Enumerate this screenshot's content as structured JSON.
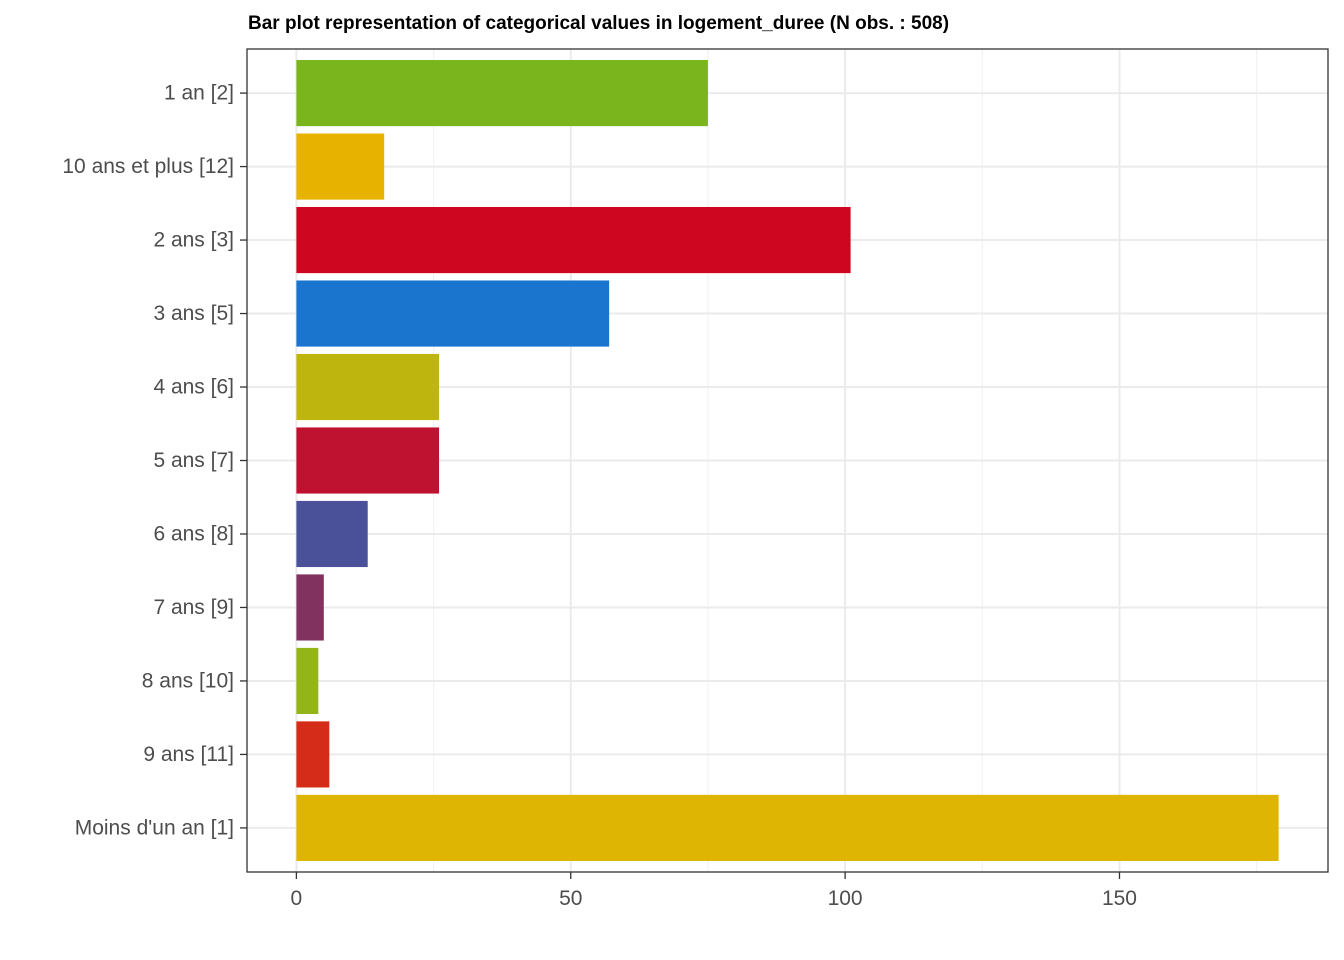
{
  "chart_data": {
    "type": "bar",
    "orientation": "horizontal",
    "title": "Bar plot representation of categorical values in logement_duree (N obs. : 508)",
    "xlabel": "",
    "ylabel": "",
    "categories": [
      "1 an [2]",
      "10 ans et plus [12]",
      "2 ans [3]",
      "3 ans [5]",
      "4 ans [6]",
      "5 ans [7]",
      "6 ans [8]",
      "7 ans [9]",
      "8 ans [10]",
      "9 ans [11]",
      "Moins d'un an [1]"
    ],
    "values": [
      75,
      16,
      101,
      57,
      26,
      26,
      13,
      5,
      4,
      6,
      179
    ],
    "colors": [
      "#7AB51D",
      "#E8B300",
      "#CE0620",
      "#1A75CE",
      "#BEB50E",
      "#BF1230",
      "#4A5199",
      "#82325E",
      "#94B51A",
      "#D42C18",
      "#DDB502"
    ],
    "xlim": [
      -9,
      188
    ],
    "xticks": [
      0,
      50,
      100,
      150
    ],
    "xtick_labels": [
      "0",
      "50",
      "100",
      "150"
    ],
    "grid": true,
    "legend": "none"
  }
}
